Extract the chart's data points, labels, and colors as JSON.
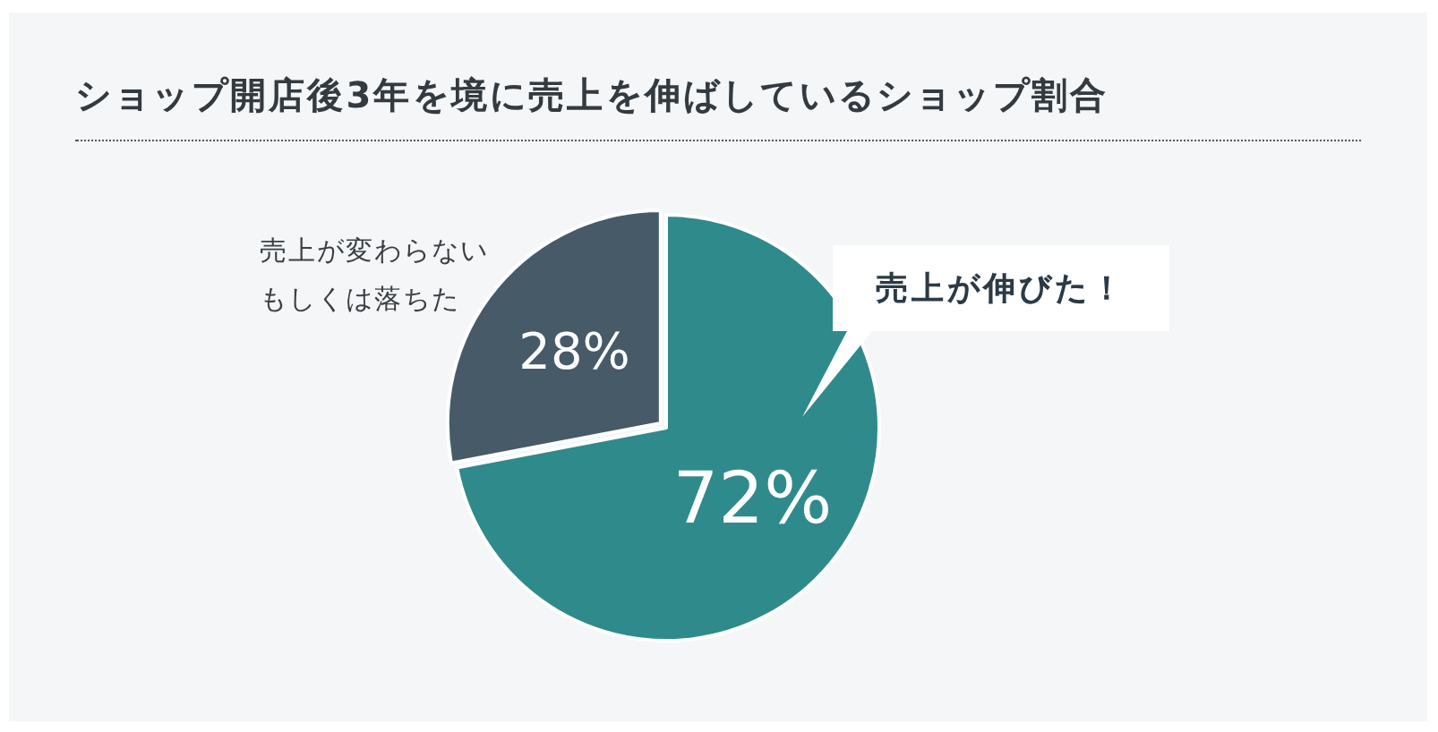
{
  "chart_data": {
    "type": "pie",
    "title": "ショップ開店後3年を境に売上を伸ばしているショップ割合",
    "categories": [
      "売上が伸びた！",
      "売上が変わらないもしくは落ちた"
    ],
    "values": [
      72,
      28
    ],
    "colors": [
      "#2f8a8b",
      "#465a68"
    ],
    "value_labels": [
      "72%",
      "28%"
    ]
  }
}
